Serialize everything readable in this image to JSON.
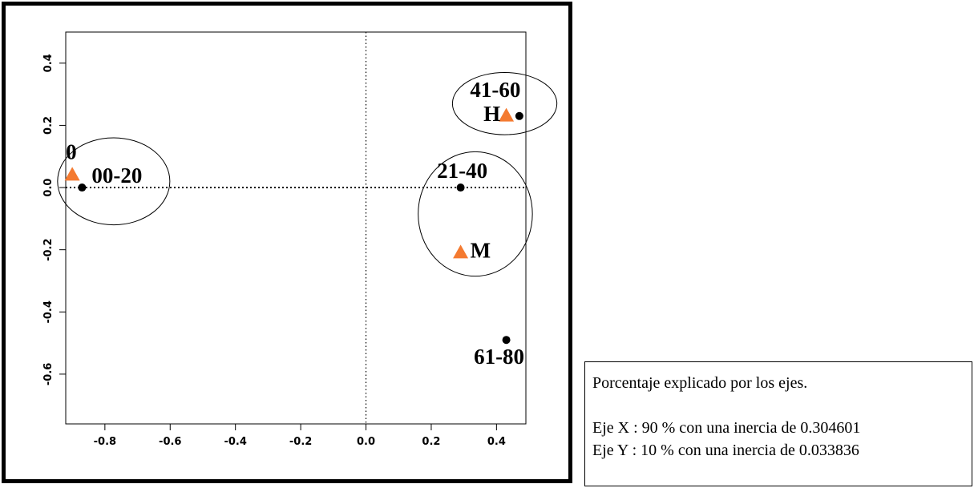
{
  "chart_data": {
    "type": "scatter",
    "title": "",
    "xlabel": "",
    "ylabel": "",
    "xlim": [
      -0.92,
      0.49
    ],
    "ylim": [
      -0.76,
      0.5
    ],
    "x_ticks": [
      -0.8,
      -0.6,
      -0.4,
      -0.2,
      0.0,
      0.2,
      0.4
    ],
    "x_tick_labels": [
      "-0.8",
      "-0.6",
      "-0.4",
      "-0.2",
      "0.0",
      "0.2",
      "0.4"
    ],
    "y_ticks": [
      -0.6,
      -0.4,
      -0.2,
      0.0,
      0.2,
      0.4
    ],
    "y_tick_labels": [
      "-0.6",
      "-0.4",
      "-0.2",
      "0.0",
      "0.2",
      "0.4"
    ],
    "grid": false,
    "reference_lines": {
      "x": 0.0,
      "y": 0.0
    },
    "series": [
      {
        "marker": "circle",
        "color": "#000000",
        "points": [
          {
            "label": "00-20",
            "x": -0.87,
            "y": 0.0
          },
          {
            "label": "21-40",
            "x": 0.29,
            "y": 0.0
          },
          {
            "label": "41-60",
            "x": 0.47,
            "y": 0.23
          },
          {
            "label": "61-80",
            "x": 0.43,
            "y": -0.49
          }
        ]
      },
      {
        "marker": "triangle",
        "color": "#f47a30",
        "points": [
          {
            "label": "0",
            "x": -0.9,
            "y": 0.04
          },
          {
            "label": "H",
            "x": 0.43,
            "y": 0.23
          },
          {
            "label": "M",
            "x": 0.29,
            "y": -0.21
          }
        ]
      }
    ],
    "groups": [
      {
        "name": "group-0-00-20",
        "cx": -0.773,
        "cy": 0.02,
        "rx": 0.172,
        "ry": 0.14
      },
      {
        "name": "group-41-60-H",
        "cx": 0.425,
        "cy": 0.27,
        "rx": 0.16,
        "ry": 0.1
      },
      {
        "name": "group-21-40-M",
        "cx": 0.335,
        "cy": -0.085,
        "rx": 0.175,
        "ry": 0.2
      }
    ]
  },
  "info": {
    "heading": "Porcentaje explicado por los ejes.",
    "line_x": "Eje X : 90 % con una inercia de 0.304601",
    "line_y": "Eje Y : 10 % con una inercia de 0.033836"
  }
}
